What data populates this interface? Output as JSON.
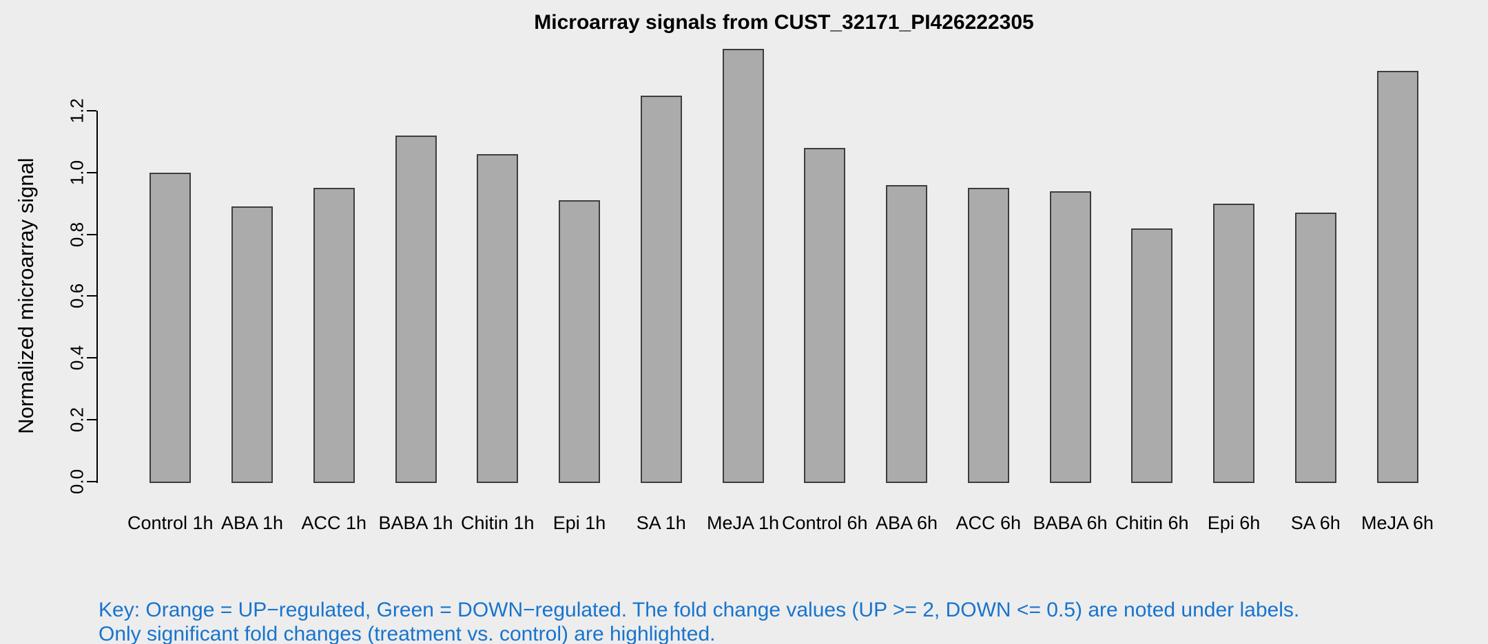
{
  "chart_data": {
    "type": "bar",
    "title": "Microarray signals from CUST_32171_PI426222305",
    "xlabel": "",
    "ylabel": "Normalized microarray signal",
    "categories": [
      "Control 1h",
      "ABA 1h",
      "ACC 1h",
      "BABA 1h",
      "Chitin 1h",
      "Epi 1h",
      "SA 1h",
      "MeJA 1h",
      "Control 6h",
      "ABA 6h",
      "ACC 6h",
      "BABA 6h",
      "Chitin 6h",
      "Epi 6h",
      "SA 6h",
      "MeJA 6h"
    ],
    "values": [
      1.0,
      0.89,
      0.95,
      1.12,
      1.06,
      0.91,
      1.25,
      1.4,
      1.08,
      0.96,
      0.95,
      0.94,
      0.82,
      0.9,
      0.87,
      1.33
    ],
    "yticks": [
      "0.0",
      "0.2",
      "0.4",
      "0.6",
      "0.8",
      "1.0",
      "1.2"
    ],
    "ytick_values": [
      0.0,
      0.2,
      0.4,
      0.6,
      0.8,
      1.0,
      1.2
    ],
    "ylim": [
      0,
      1.45
    ],
    "grid": false,
    "legend_position": "none",
    "colors": {
      "background": "#EDEDED",
      "bar_fill": "#ABABAB",
      "bar_border": "#3D3D3D",
      "axis": "#000000",
      "text": "#000000",
      "note_blue": "#1874CD"
    }
  },
  "notes": {
    "line1": "Key: Orange = UP−regulated, Green = DOWN−regulated. The fold change values (UP >= 2, DOWN <= 0.5) are noted under labels.",
    "line2": "Only significant fold changes (treatment vs. control) are highlighted."
  }
}
